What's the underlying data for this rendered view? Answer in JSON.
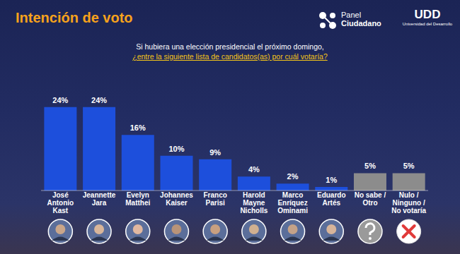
{
  "chart_data": {
    "type": "bar",
    "title": "Intención de voto",
    "subtitle": "Si hubiera una elección presidencial el próximo domingo,",
    "question": "¿entre la siguiente lista de candidatos(as) por cuál votaría?",
    "logos": [
      "Panel Ciudadano",
      "UDD",
      "Universidad del Desarrollo"
    ],
    "categories": [
      "José Antonio Kast",
      "Jeannette Jara",
      "Evelyn Matthei",
      "Johannes Kaiser",
      "Franco Parisi",
      "Harold Mayne Nicholls",
      "Marco Enríquez Ominami",
      "Eduardo Artés",
      "No sabe / Otro",
      "Nulo / Ninguno / No votaría"
    ],
    "values": [
      24,
      24,
      16,
      10,
      9,
      4,
      2,
      1,
      5,
      5
    ],
    "value_labels": [
      "24%",
      "24%",
      "16%",
      "10%",
      "9%",
      "4%",
      "2%",
      "1%",
      "5%",
      "5%"
    ],
    "colors": [
      "#1d4fdc",
      "#1d4fdc",
      "#1d4fdc",
      "#1d4fdc",
      "#1d4fdc",
      "#1d4fdc",
      "#1d4fdc",
      "#1d4fdc",
      "#8c8c8c",
      "#8c8c8c"
    ],
    "ylim": [
      0,
      26
    ],
    "data_labels": true,
    "tick_labels": "x",
    "grid": false
  }
}
